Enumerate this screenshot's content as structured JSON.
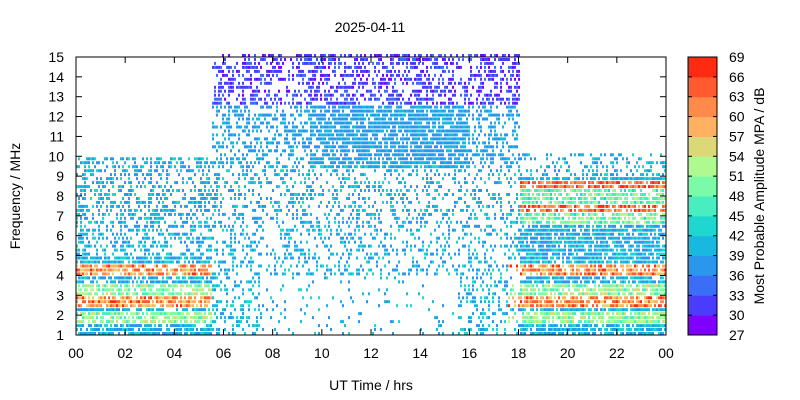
{
  "chart_data": {
    "type": "heatmap",
    "title": "2025-04-11",
    "xlabel": "UT Time / hrs",
    "ylabel": "Frequency / MHz",
    "colorbar_label": "Most Probable Amplitude MPA / dB",
    "xlim": [
      0,
      24
    ],
    "ylim": [
      1,
      15
    ],
    "x_ticks": [
      "00",
      "02",
      "04",
      "06",
      "08",
      "10",
      "12",
      "14",
      "16",
      "18",
      "20",
      "22",
      "00"
    ],
    "y_ticks": [
      "1",
      "2",
      "3",
      "4",
      "5",
      "6",
      "7",
      "8",
      "9",
      "10",
      "11",
      "12",
      "13",
      "14",
      "15"
    ],
    "colorbar": {
      "min": 27,
      "max": 69,
      "step": 3,
      "ticks": [
        "27",
        "30",
        "33",
        "36",
        "39",
        "42",
        "45",
        "48",
        "51",
        "54",
        "57",
        "60",
        "63",
        "66",
        "69"
      ],
      "colors": [
        "#8000ff",
        "#4a3cfb",
        "#3a6ef6",
        "#2a96ec",
        "#18b8e0",
        "#1ed8d0",
        "#48eec0",
        "#7bfaa8",
        "#aefa90",
        "#dcd878",
        "#ffb060",
        "#ff8a4a",
        "#ff5a30",
        "#ff2a12"
      ]
    },
    "grid": false,
    "regions": [
      {
        "x_start": 0.0,
        "x_end": 5.5,
        "f_max": 9.8,
        "density": "dense",
        "dominant_mpa": [
          39,
          48
        ],
        "note": "strong bands near 2.5, 3.2 and 4.2 MHz"
      },
      {
        "x_start": 5.5,
        "x_end": 18.0,
        "f_max": 15.0,
        "density": "medium",
        "dominant_mpa": [
          36,
          42
        ],
        "note": "upper 13-15 MHz region at 27-33 dB"
      },
      {
        "x_start": 18.0,
        "x_end": 24.0,
        "f_max": 10.0,
        "density": "dense",
        "dominant_mpa": [
          42,
          66
        ],
        "note": "strong bands near 2.6, 4.0, 7.3 and 8.5 MHz"
      }
    ]
  }
}
